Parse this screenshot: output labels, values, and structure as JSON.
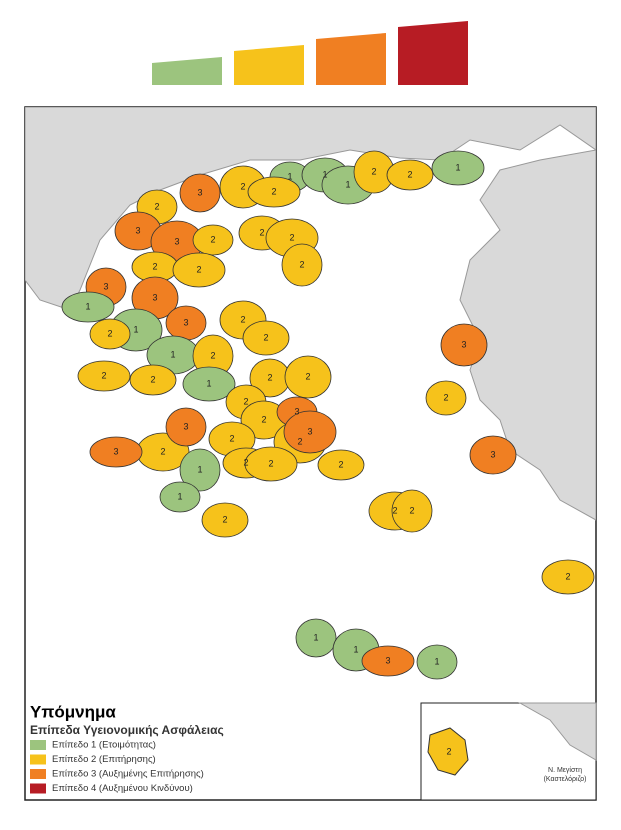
{
  "legend": {
    "title": "Υπόμνημα",
    "subtitle": "Επίπεδα Υγειονομικής Ασφάλειας",
    "levels": [
      {
        "label": "Επίπεδο 1 (Ετοιμότητας)",
        "color": "#9cc47e"
      },
      {
        "label": "Επίπεδο 2 (Επιτήρησης)",
        "color": "#f6c21b"
      },
      {
        "label": "Επίπεδο 3 (Αυξημένης Επιτήρησης)",
        "color": "#f07f22"
      },
      {
        "label": "Επίπεδο 4 (Αυξημένου Κινδύνου)",
        "color": "#b71c24"
      }
    ]
  },
  "inset": {
    "label_lines": [
      "Ν. Μεγίστη",
      "(Καστελόριζο)"
    ],
    "region_label": "2"
  },
  "regions": [
    "1",
    "1",
    "1",
    "2",
    "2",
    "1",
    "3",
    "2",
    "2",
    "2",
    "3",
    "3",
    "2",
    "2",
    "2",
    "2",
    "2",
    "2",
    "3",
    "3",
    "1",
    "3",
    "2",
    "1",
    "2",
    "2",
    "1",
    "2",
    "2",
    "1",
    "2",
    "2",
    "2",
    "2",
    "2",
    "2",
    "3",
    "2",
    "2",
    "1",
    "2",
    "2",
    "3",
    "3",
    "3",
    "2",
    "3",
    "3",
    "1",
    "2",
    "2",
    "2",
    "2",
    "2",
    "1",
    "1",
    "3",
    "1"
  ]
}
